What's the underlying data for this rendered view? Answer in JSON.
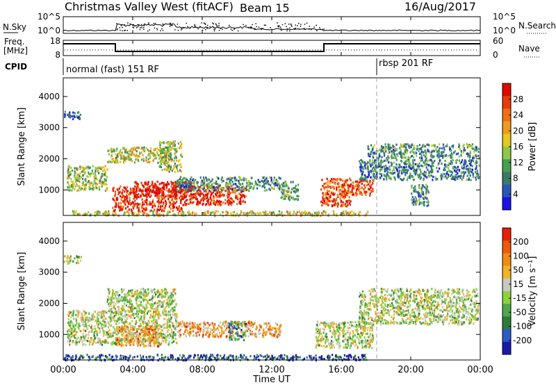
{
  "header": {
    "title": "Christmas Valley West (fitACF)",
    "beam": "Beam 15",
    "date": "16/Aug/2017"
  },
  "nsky_panel": {
    "left_label": "N.Sky",
    "right_label": "N.Search",
    "yticks_left": [
      "10^5",
      "10^0"
    ],
    "yticks_right": [
      "10^5",
      "10^0"
    ],
    "log_scale": true
  },
  "freq_panel": {
    "left_label_1": "Freq.",
    "left_label_2": "[MHz]",
    "right_label": "Nave",
    "yticks_left": [
      "18",
      "8"
    ],
    "yticks_right": [
      "60",
      "0"
    ],
    "freq_steps": [
      {
        "t0": 0,
        "t1": 3,
        "level": "high"
      },
      {
        "t0": 3,
        "t1": 15,
        "level": "low"
      },
      {
        "t0": 15,
        "t1": 24,
        "level": "high"
      }
    ]
  },
  "cpid_panel": {
    "label": "CPID",
    "modes": [
      {
        "start_hour": 0,
        "text": "normal (fast) 151 RF"
      },
      {
        "start_hour": 18,
        "text": "rbsp 201 RF"
      }
    ]
  },
  "x_axis": {
    "label": "Time UT",
    "range_hours": [
      0,
      24
    ],
    "ticks": [
      "00:00",
      "04:00",
      "08:00",
      "12:00",
      "16:00",
      "20:00",
      "00:00"
    ],
    "tick_hours": [
      0,
      4,
      8,
      12,
      16,
      20,
      24
    ]
  },
  "chart_data": [
    {
      "type": "heatmap",
      "panel": "power",
      "ylabel": "Slant Range [km]",
      "ylim": [
        180,
        4600
      ],
      "yticks": [
        1000,
        2000,
        3000,
        4000
      ],
      "colorbar_label": "Power [dB]",
      "colorbar_ticks": [
        "28",
        "24",
        "20",
        "16",
        "12",
        "8",
        "4"
      ],
      "colorbar_colors": [
        "#1a14e6",
        "#2c55b8",
        "#3d7a66",
        "#46a050",
        "#8cc84a",
        "#e6c81e",
        "#f09b1e",
        "#f06e14",
        "#e63c0a",
        "#dd0a00"
      ],
      "echo_regions": [
        {
          "t0": 0.5,
          "t1": 17.5,
          "r0": 200,
          "r1": 350,
          "level": 0.55
        },
        {
          "t0": 2.7,
          "t1": 6.8,
          "r0": 350,
          "r1": 520,
          "level": 0.95
        },
        {
          "t0": 2.8,
          "t1": 10.5,
          "r0": 550,
          "r1": 1150,
          "level": 0.9
        },
        {
          "t0": 4.0,
          "t1": 7.5,
          "r0": 800,
          "r1": 1300,
          "level": 1.0
        },
        {
          "t0": 0.2,
          "t1": 2.5,
          "r0": 1000,
          "r1": 1800,
          "level": 0.45
        },
        {
          "t0": 6.5,
          "t1": 12.5,
          "r0": 1000,
          "r1": 1450,
          "level": 0.3
        },
        {
          "t0": 2.5,
          "t1": 6.2,
          "r0": 1900,
          "r1": 2400,
          "level": 0.5
        },
        {
          "t0": 5.5,
          "t1": 6.8,
          "r0": 1600,
          "r1": 2600,
          "level": 0.45
        },
        {
          "t0": 12.5,
          "t1": 13.5,
          "r0": 700,
          "r1": 1300,
          "level": 0.35
        },
        {
          "t0": 14.8,
          "t1": 16.5,
          "r0": 500,
          "r1": 1400,
          "level": 0.8
        },
        {
          "t0": 16.0,
          "t1": 17.8,
          "r0": 850,
          "r1": 1350,
          "level": 0.85
        },
        {
          "t0": 17.0,
          "t1": 23.9,
          "r0": 1350,
          "r1": 2000,
          "level": 0.25
        },
        {
          "t0": 17.5,
          "t1": 23.9,
          "r0": 2050,
          "r1": 2500,
          "level": 0.3
        },
        {
          "t0": 20.0,
          "t1": 21.0,
          "r0": 500,
          "r1": 1200,
          "level": 0.3
        },
        {
          "t0": 0.0,
          "t1": 1.0,
          "r0": 3300,
          "r1": 3550,
          "level": 0.2
        }
      ]
    },
    {
      "type": "heatmap",
      "panel": "velocity",
      "ylabel": "Slant Range [km]",
      "ylim": [
        180,
        4600
      ],
      "yticks": [
        1000,
        2000,
        3000,
        4000
      ],
      "colorbar_label": "Velocity [m s⁻¹]",
      "colorbar_ticks": [
        "200",
        "100",
        "50",
        "15",
        "-15",
        "-50",
        "-100",
        "-200"
      ],
      "colorbar_colors": [
        "#1a1aa8",
        "#2b5cc4",
        "#2e7a3c",
        "#4fa84a",
        "#8cd23c",
        "#c8c8c0",
        "#f0b428",
        "#f08c14",
        "#f05a0a",
        "#e61e0a"
      ],
      "echo_regions": [
        {
          "t0": 0.0,
          "t1": 17.5,
          "r0": 200,
          "r1": 380,
          "level": 0.15
        },
        {
          "t0": 0.2,
          "t1": 6.5,
          "r0": 700,
          "r1": 1800,
          "level": 0.5
        },
        {
          "t0": 3.0,
          "t1": 5.5,
          "r0": 650,
          "r1": 1300,
          "level": 0.7
        },
        {
          "t0": 6.5,
          "t1": 11.0,
          "r0": 950,
          "r1": 1450,
          "level": 0.7
        },
        {
          "t0": 9.5,
          "t1": 10.5,
          "r0": 850,
          "r1": 1450,
          "level": 0.25
        },
        {
          "t0": 2.5,
          "t1": 6.5,
          "r0": 1800,
          "r1": 2500,
          "level": 0.5
        },
        {
          "t0": 11.0,
          "t1": 12.5,
          "r0": 950,
          "r1": 1400,
          "level": 0.7
        },
        {
          "t0": 14.5,
          "t1": 17.8,
          "r0": 600,
          "r1": 1450,
          "level": 0.5
        },
        {
          "t0": 17.0,
          "t1": 23.9,
          "r0": 1350,
          "r1": 2500,
          "level": 0.5
        },
        {
          "t0": 0.0,
          "t1": 1.0,
          "r0": 3300,
          "r1": 3550,
          "level": 0.5
        }
      ]
    }
  ],
  "colors": {
    "axis": "#000000",
    "dashed_marker": "#a0a0a0"
  }
}
